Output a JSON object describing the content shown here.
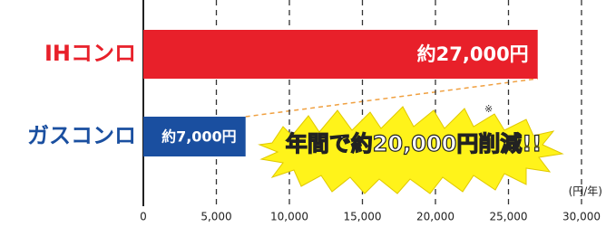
{
  "chart_data": {
    "type": "hbar",
    "categories": [
      "IHコンロ",
      "ガスコンロ"
    ],
    "values": [
      27000,
      7000
    ],
    "value_labels": [
      "約27,000円",
      "約7,000円"
    ],
    "colors": [
      "#e8202a",
      "#1a4fa0"
    ],
    "xlim": [
      0,
      30000
    ],
    "xticks": [
      0,
      {
        "value": 5000,
        "label": "5,000"
      },
      {
        "value": 10000,
        "label": "10,000"
      },
      {
        "value": 15000,
        "label": "15,000"
      },
      {
        "value": 20000,
        "label": "20,000"
      },
      {
        "value": 25000,
        "label": "25,000"
      },
      {
        "value": 30000,
        "label": "30,000"
      }
    ],
    "grid": true,
    "unit_label": "(円/年)",
    "annotation": "年間で約20,000円削減!!",
    "footnote_mark": "※"
  }
}
